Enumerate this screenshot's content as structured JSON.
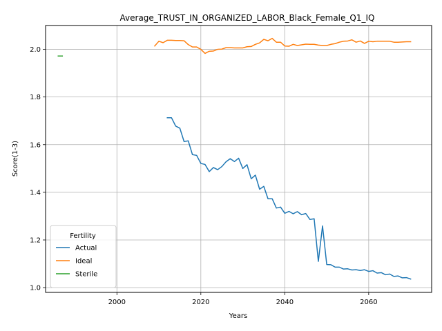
{
  "chart_data": {
    "type": "line",
    "title": "Average_TRUST_IN_ORGANIZED_LABOR_Black_Female_Q1_IQ",
    "xlabel": "Years",
    "ylabel": "Score(1-3)",
    "xlim": [
      1983,
      2075
    ],
    "ylim": [
      0.98,
      2.1
    ],
    "xticks": [
      2000,
      2020,
      2040,
      2060
    ],
    "yticks": [
      1.0,
      1.2,
      1.4,
      1.6,
      1.8,
      2.0
    ],
    "ytick_labels": [
      "1.0",
      "1.2",
      "1.4",
      "1.6",
      "1.8",
      "2.0"
    ],
    "grid": true,
    "legend": {
      "title": "Fertility",
      "placement": "lower-left"
    },
    "series": [
      {
        "name": "Actual",
        "color": "#1f77b4",
        "x": [
          2012,
          2013,
          2014,
          2015,
          2016,
          2017,
          2018,
          2019,
          2020,
          2021,
          2022,
          2023,
          2024,
          2025,
          2026,
          2027,
          2028,
          2029,
          2030,
          2031,
          2032,
          2033,
          2034,
          2035,
          2036,
          2037,
          2038,
          2039,
          2040,
          2041,
          2042,
          2043,
          2044,
          2045,
          2046,
          2047,
          2048,
          2049,
          2050,
          2051,
          2052,
          2053,
          2054,
          2055,
          2056,
          2057,
          2058,
          2059,
          2060,
          2061,
          2062,
          2063,
          2064,
          2065,
          2066,
          2067,
          2068,
          2069,
          2070
        ],
        "y": [
          1.713,
          1.713,
          1.678,
          1.669,
          1.613,
          1.616,
          1.558,
          1.555,
          1.521,
          1.517,
          1.487,
          1.504,
          1.495,
          1.508,
          1.528,
          1.541,
          1.529,
          1.543,
          1.5,
          1.516,
          1.457,
          1.472,
          1.413,
          1.425,
          1.373,
          1.373,
          1.334,
          1.338,
          1.312,
          1.32,
          1.31,
          1.319,
          1.306,
          1.311,
          1.286,
          1.289,
          1.11,
          1.259,
          1.097,
          1.096,
          1.086,
          1.086,
          1.078,
          1.079,
          1.074,
          1.075,
          1.072,
          1.075,
          1.068,
          1.071,
          1.061,
          1.063,
          1.054,
          1.057,
          1.047,
          1.049,
          1.041,
          1.042,
          1.036
        ]
      },
      {
        "name": "Ideal",
        "color": "#ff7f0e",
        "x": [
          2009,
          2010,
          2011,
          2012,
          2013,
          2014,
          2015,
          2016,
          2017,
          2018,
          2019,
          2020,
          2021,
          2022,
          2023,
          2024,
          2025,
          2026,
          2027,
          2028,
          2029,
          2030,
          2031,
          2032,
          2033,
          2034,
          2035,
          2036,
          2037,
          2038,
          2039,
          2040,
          2041,
          2042,
          2043,
          2044,
          2045,
          2046,
          2047,
          2048,
          2049,
          2050,
          2051,
          2052,
          2053,
          2054,
          2055,
          2056,
          2057,
          2058,
          2059,
          2060,
          2061,
          2062,
          2063,
          2064,
          2065,
          2066,
          2067,
          2068,
          2069,
          2070
        ],
        "y": [
          2.014,
          2.034,
          2.028,
          2.038,
          2.038,
          2.037,
          2.037,
          2.036,
          2.02,
          2.01,
          2.01,
          2.0,
          1.983,
          1.992,
          1.993,
          2.0,
          2.001,
          2.007,
          2.007,
          2.006,
          2.006,
          2.006,
          2.011,
          2.012,
          2.021,
          2.027,
          2.042,
          2.036,
          2.046,
          2.03,
          2.03,
          2.014,
          2.013,
          2.021,
          2.016,
          2.019,
          2.022,
          2.021,
          2.021,
          2.018,
          2.016,
          2.016,
          2.021,
          2.024,
          2.03,
          2.034,
          2.035,
          2.04,
          2.03,
          2.035,
          2.025,
          2.034,
          2.032,
          2.034,
          2.034,
          2.034,
          2.034,
          2.03,
          2.03,
          2.031,
          2.032,
          2.032
        ]
      },
      {
        "name": "Sterile",
        "color": "#2ca02c",
        "x": [
          1986,
          1987
        ],
        "y": [
          1.972,
          1.972
        ]
      }
    ]
  }
}
